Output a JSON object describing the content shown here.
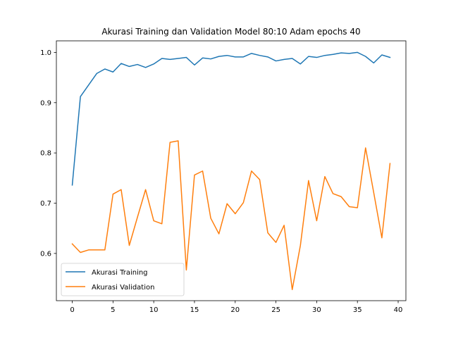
{
  "chart_data": {
    "type": "line",
    "title": "Akurasi Training dan Validation Model 80:10 Adam epochs 40",
    "xlabel": "",
    "ylabel": "",
    "xlim": [
      -1.95,
      40.95
    ],
    "ylim": [
      0.506,
      1.023
    ],
    "xticks": [
      0,
      5,
      10,
      15,
      20,
      25,
      30,
      35,
      40
    ],
    "yticks": [
      0.6,
      0.7,
      0.8,
      0.9,
      1.0
    ],
    "ytick_labels": [
      "0.6",
      "0.7",
      "0.8",
      "0.9",
      "1.0"
    ],
    "grid": false,
    "legend_position": "lower-left",
    "x": [
      0,
      1,
      2,
      3,
      4,
      5,
      6,
      7,
      8,
      9,
      10,
      11,
      12,
      13,
      14,
      15,
      16,
      17,
      18,
      19,
      20,
      21,
      22,
      23,
      24,
      25,
      26,
      27,
      28,
      29,
      30,
      31,
      32,
      33,
      34,
      35,
      36,
      37,
      38,
      39
    ],
    "series": [
      {
        "name": "Akurasi Training",
        "color": "#1f77b4",
        "values": [
          0.736,
          0.912,
          0.935,
          0.958,
          0.967,
          0.961,
          0.978,
          0.972,
          0.976,
          0.97,
          0.977,
          0.988,
          0.986,
          0.988,
          0.99,
          0.975,
          0.989,
          0.987,
          0.992,
          0.994,
          0.991,
          0.991,
          0.998,
          0.994,
          0.991,
          0.983,
          0.986,
          0.988,
          0.977,
          0.992,
          0.99,
          0.994,
          0.996,
          0.999,
          0.998,
          1.0,
          0.992,
          0.979,
          0.995,
          0.99
        ]
      },
      {
        "name": "Akurasi Validation",
        "color": "#ff7f0e",
        "values": [
          0.619,
          0.602,
          0.607,
          0.607,
          0.607,
          0.718,
          0.727,
          0.616,
          0.672,
          0.727,
          0.665,
          0.659,
          0.821,
          0.824,
          0.567,
          0.756,
          0.764,
          0.67,
          0.639,
          0.699,
          0.679,
          0.701,
          0.764,
          0.747,
          0.641,
          0.622,
          0.656,
          0.528,
          0.616,
          0.745,
          0.665,
          0.753,
          0.719,
          0.713,
          0.693,
          0.691,
          0.81,
          0.721,
          0.631,
          0.779
        ]
      }
    ]
  }
}
